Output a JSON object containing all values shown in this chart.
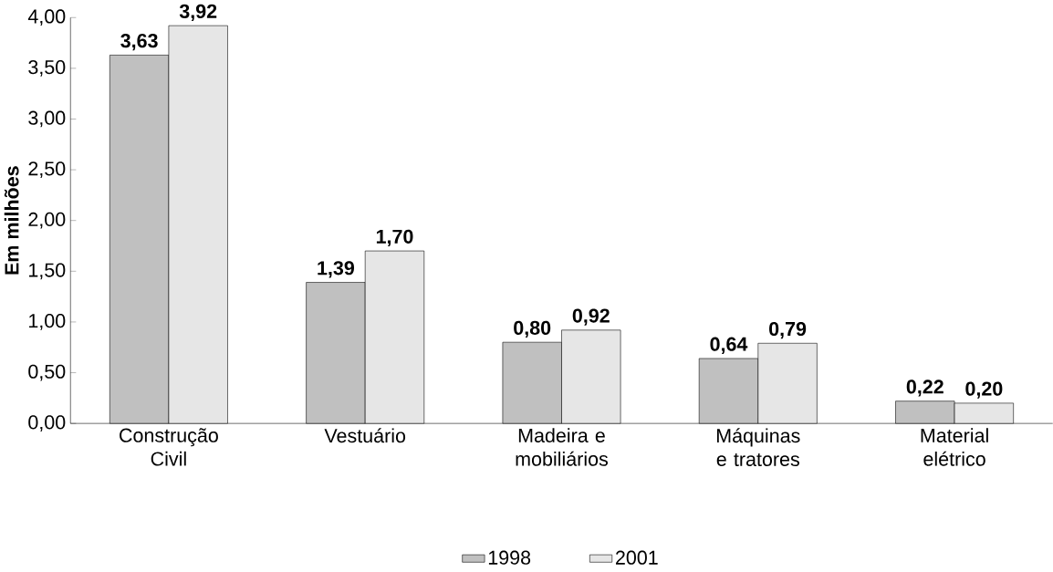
{
  "chart_data": {
    "type": "bar",
    "ylabel": "Em milhões",
    "categories": [
      "Construção Civil",
      "Vestuário",
      "Madeira e mobiliários",
      "Máquinas e tratores",
      "Material elétrico"
    ],
    "series": [
      {
        "name": "1998",
        "color": "#c0c0c0",
        "values": [
          3.63,
          1.39,
          0.8,
          0.64,
          0.22
        ],
        "value_labels": [
          "3,63",
          "1,39",
          "0,80",
          "0,64",
          "0,22"
        ]
      },
      {
        "name": "2001",
        "color": "#e6e6e6",
        "values": [
          3.92,
          1.7,
          0.92,
          0.79,
          0.2
        ],
        "value_labels": [
          "3,92",
          "1,70",
          "0,92",
          "0,79",
          "0,20"
        ]
      }
    ],
    "ylim": [
      0,
      4
    ],
    "yticks": [
      {
        "value": 0,
        "label": "0,00"
      },
      {
        "value": 0.5,
        "label": "0,50"
      },
      {
        "value": 1,
        "label": "1,00"
      },
      {
        "value": 1.5,
        "label": "1,50"
      },
      {
        "value": 2,
        "label": "2,00"
      },
      {
        "value": 2.5,
        "label": "2,50"
      },
      {
        "value": 3,
        "label": "3,00"
      },
      {
        "value": 3.5,
        "label": "3,50"
      },
      {
        "value": 4,
        "label": "4,00"
      }
    ],
    "legend": "bottom"
  }
}
